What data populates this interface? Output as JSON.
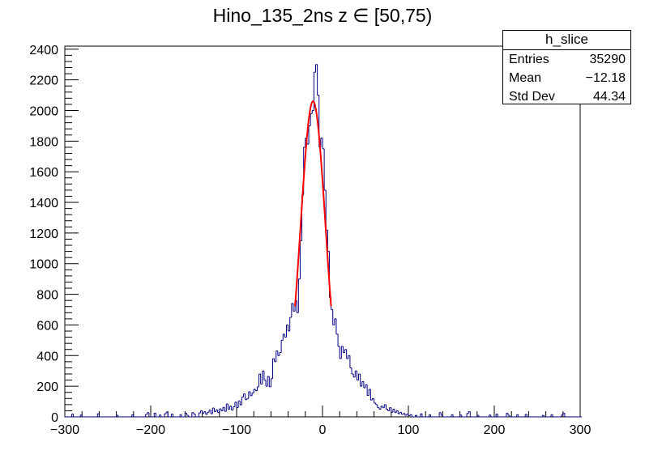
{
  "chart_data": {
    "type": "histogram",
    "title": "Hino_135_2ns z  ∈ [50,75)",
    "xlim": [
      -300,
      300
    ],
    "ylim": [
      0,
      2420
    ],
    "xticks": [
      -300,
      -200,
      -100,
      0,
      100,
      200,
      300
    ],
    "xtick_labels": [
      "−300",
      "−200",
      "−100",
      "0",
      "100",
      "200",
      "300"
    ],
    "yticks": [
      0,
      200,
      400,
      600,
      800,
      1000,
      1200,
      1400,
      1600,
      1800,
      2000,
      2200,
      2400
    ],
    "bin_width": 2,
    "series": [
      {
        "line_color": "#000080",
        "bins": [
          {
            "x": -300,
            "y": 0
          },
          {
            "x": -292,
            "y": 18
          },
          {
            "x": -290,
            "y": 0
          },
          {
            "x": -282,
            "y": 12
          },
          {
            "x": -280,
            "y": 0
          },
          {
            "x": -262,
            "y": 20
          },
          {
            "x": -260,
            "y": 0
          },
          {
            "x": -240,
            "y": 10
          },
          {
            "x": -238,
            "y": 0
          },
          {
            "x": -222,
            "y": 14
          },
          {
            "x": -220,
            "y": 0
          },
          {
            "x": -206,
            "y": 16
          },
          {
            "x": -204,
            "y": 28
          },
          {
            "x": -202,
            "y": 0
          },
          {
            "x": -196,
            "y": 24
          },
          {
            "x": -194,
            "y": 0
          },
          {
            "x": -190,
            "y": 12
          },
          {
            "x": -188,
            "y": 0
          },
          {
            "x": -184,
            "y": 20
          },
          {
            "x": -182,
            "y": 32
          },
          {
            "x": -180,
            "y": 0
          },
          {
            "x": -176,
            "y": 18
          },
          {
            "x": -174,
            "y": 0
          },
          {
            "x": -166,
            "y": 14
          },
          {
            "x": -164,
            "y": 0
          },
          {
            "x": -160,
            "y": 24
          },
          {
            "x": -158,
            "y": 10
          },
          {
            "x": -156,
            "y": 0
          },
          {
            "x": -152,
            "y": 28
          },
          {
            "x": -150,
            "y": 18
          },
          {
            "x": -148,
            "y": 0
          },
          {
            "x": -144,
            "y": 26
          },
          {
            "x": -142,
            "y": 40
          },
          {
            "x": -140,
            "y": 22
          },
          {
            "x": -138,
            "y": 34
          },
          {
            "x": -136,
            "y": 16
          },
          {
            "x": -134,
            "y": 30
          },
          {
            "x": -132,
            "y": 44
          },
          {
            "x": -130,
            "y": 20
          },
          {
            "x": -128,
            "y": 58
          },
          {
            "x": -126,
            "y": 34
          },
          {
            "x": -124,
            "y": 46
          },
          {
            "x": -122,
            "y": 28
          },
          {
            "x": -120,
            "y": 52
          },
          {
            "x": -118,
            "y": 40
          },
          {
            "x": -116,
            "y": 62
          },
          {
            "x": -114,
            "y": 36
          },
          {
            "x": -112,
            "y": 84
          },
          {
            "x": -110,
            "y": 50
          },
          {
            "x": -108,
            "y": 70
          },
          {
            "x": -106,
            "y": 44
          },
          {
            "x": -104,
            "y": 66
          },
          {
            "x": -102,
            "y": 96
          },
          {
            "x": -100,
            "y": 60
          },
          {
            "x": -98,
            "y": 104
          },
          {
            "x": -96,
            "y": 78
          },
          {
            "x": -94,
            "y": 130
          },
          {
            "x": -92,
            "y": 150
          },
          {
            "x": -90,
            "y": 112
          },
          {
            "x": -88,
            "y": 120
          },
          {
            "x": -86,
            "y": 164
          },
          {
            "x": -84,
            "y": 138
          },
          {
            "x": -82,
            "y": 156
          },
          {
            "x": -80,
            "y": 180
          },
          {
            "x": -78,
            "y": 170
          },
          {
            "x": -76,
            "y": 196
          },
          {
            "x": -74,
            "y": 280
          },
          {
            "x": -72,
            "y": 214
          },
          {
            "x": -70,
            "y": 300
          },
          {
            "x": -68,
            "y": 240
          },
          {
            "x": -66,
            "y": 200
          },
          {
            "x": -64,
            "y": 264
          },
          {
            "x": -62,
            "y": 196
          },
          {
            "x": -60,
            "y": 250
          },
          {
            "x": -58,
            "y": 380
          },
          {
            "x": -56,
            "y": 360
          },
          {
            "x": -54,
            "y": 430
          },
          {
            "x": -52,
            "y": 400
          },
          {
            "x": -50,
            "y": 420
          },
          {
            "x": -48,
            "y": 500
          },
          {
            "x": -46,
            "y": 540
          },
          {
            "x": -44,
            "y": 520
          },
          {
            "x": -42,
            "y": 600
          },
          {
            "x": -40,
            "y": 560
          },
          {
            "x": -38,
            "y": 650
          },
          {
            "x": -36,
            "y": 740
          },
          {
            "x": -34,
            "y": 690
          },
          {
            "x": -32,
            "y": 760
          },
          {
            "x": -30,
            "y": 680
          },
          {
            "x": -28,
            "y": 900
          },
          {
            "x": -26,
            "y": 1150
          },
          {
            "x": -24,
            "y": 1450
          },
          {
            "x": -22,
            "y": 1760
          },
          {
            "x": -20,
            "y": 1820
          },
          {
            "x": -18,
            "y": 1780
          },
          {
            "x": -16,
            "y": 1900
          },
          {
            "x": -14,
            "y": 1980
          },
          {
            "x": -12,
            "y": 2000
          },
          {
            "x": -10,
            "y": 2250
          },
          {
            "x": -8,
            "y": 2300
          },
          {
            "x": -6,
            "y": 2100
          },
          {
            "x": -4,
            "y": 1760
          },
          {
            "x": -2,
            "y": 1820
          },
          {
            "x": 0,
            "y": 1750
          },
          {
            "x": 2,
            "y": 1480
          },
          {
            "x": 4,
            "y": 1220
          },
          {
            "x": 6,
            "y": 1080
          },
          {
            "x": 8,
            "y": 780
          },
          {
            "x": 10,
            "y": 700
          },
          {
            "x": 12,
            "y": 600
          },
          {
            "x": 14,
            "y": 640
          },
          {
            "x": 16,
            "y": 540
          },
          {
            "x": 18,
            "y": 460
          },
          {
            "x": 20,
            "y": 380
          },
          {
            "x": 22,
            "y": 460
          },
          {
            "x": 24,
            "y": 420
          },
          {
            "x": 26,
            "y": 440
          },
          {
            "x": 28,
            "y": 380
          },
          {
            "x": 30,
            "y": 400
          },
          {
            "x": 32,
            "y": 320
          },
          {
            "x": 34,
            "y": 280
          },
          {
            "x": 36,
            "y": 260
          },
          {
            "x": 38,
            "y": 300
          },
          {
            "x": 40,
            "y": 240
          },
          {
            "x": 42,
            "y": 280
          },
          {
            "x": 44,
            "y": 200
          },
          {
            "x": 46,
            "y": 230
          },
          {
            "x": 48,
            "y": 190
          },
          {
            "x": 50,
            "y": 210
          },
          {
            "x": 52,
            "y": 140
          },
          {
            "x": 54,
            "y": 180
          },
          {
            "x": 56,
            "y": 110
          },
          {
            "x": 58,
            "y": 120
          },
          {
            "x": 60,
            "y": 90
          },
          {
            "x": 62,
            "y": 80
          },
          {
            "x": 64,
            "y": 60
          },
          {
            "x": 66,
            "y": 50
          },
          {
            "x": 68,
            "y": 70
          },
          {
            "x": 70,
            "y": 60
          },
          {
            "x": 72,
            "y": 80
          },
          {
            "x": 74,
            "y": 50
          },
          {
            "x": 76,
            "y": 40
          },
          {
            "x": 78,
            "y": 60
          },
          {
            "x": 80,
            "y": 30
          },
          {
            "x": 82,
            "y": 50
          },
          {
            "x": 84,
            "y": 28
          },
          {
            "x": 86,
            "y": 40
          },
          {
            "x": 88,
            "y": 20
          },
          {
            "x": 90,
            "y": 30
          },
          {
            "x": 92,
            "y": 16
          },
          {
            "x": 94,
            "y": 22
          },
          {
            "x": 96,
            "y": 10
          },
          {
            "x": 98,
            "y": 18
          },
          {
            "x": 100,
            "y": 8
          },
          {
            "x": 102,
            "y": 14
          },
          {
            "x": 104,
            "y": 0
          },
          {
            "x": 108,
            "y": 10
          },
          {
            "x": 110,
            "y": 0
          },
          {
            "x": 114,
            "y": 20
          },
          {
            "x": 116,
            "y": 0
          },
          {
            "x": 124,
            "y": 14
          },
          {
            "x": 126,
            "y": 0
          },
          {
            "x": 136,
            "y": 28
          },
          {
            "x": 138,
            "y": 10
          },
          {
            "x": 140,
            "y": 0
          },
          {
            "x": 150,
            "y": 14
          },
          {
            "x": 152,
            "y": 0
          },
          {
            "x": 160,
            "y": 12
          },
          {
            "x": 162,
            "y": 0
          },
          {
            "x": 168,
            "y": 22
          },
          {
            "x": 170,
            "y": 34
          },
          {
            "x": 172,
            "y": 0
          },
          {
            "x": 180,
            "y": 10
          },
          {
            "x": 182,
            "y": 0
          },
          {
            "x": 194,
            "y": 12
          },
          {
            "x": 196,
            "y": 0
          },
          {
            "x": 202,
            "y": 18
          },
          {
            "x": 204,
            "y": 0
          },
          {
            "x": 214,
            "y": 24
          },
          {
            "x": 216,
            "y": 10
          },
          {
            "x": 218,
            "y": 0
          },
          {
            "x": 226,
            "y": 14
          },
          {
            "x": 228,
            "y": 0
          },
          {
            "x": 236,
            "y": 16
          },
          {
            "x": 238,
            "y": 0
          },
          {
            "x": 256,
            "y": 10
          },
          {
            "x": 258,
            "y": 0
          },
          {
            "x": 266,
            "y": 14
          },
          {
            "x": 268,
            "y": 0
          },
          {
            "x": 278,
            "y": 12
          },
          {
            "x": 280,
            "y": 24
          },
          {
            "x": 282,
            "y": 0
          },
          {
            "x": 300,
            "y": 0
          }
        ]
      }
    ],
    "fit": {
      "color": "#ff0000",
      "type": "gaussian",
      "amplitude": 2060,
      "mean": -11,
      "sigma": 14.5,
      "range": [
        -32,
        10
      ]
    },
    "stats_box": {
      "name": "h_slice",
      "rows": [
        {
          "key": "Entries",
          "value": "35290"
        },
        {
          "key": "Mean",
          "value": "−12.18"
        },
        {
          "key": "Std Dev",
          "value": "44.34"
        }
      ]
    }
  }
}
